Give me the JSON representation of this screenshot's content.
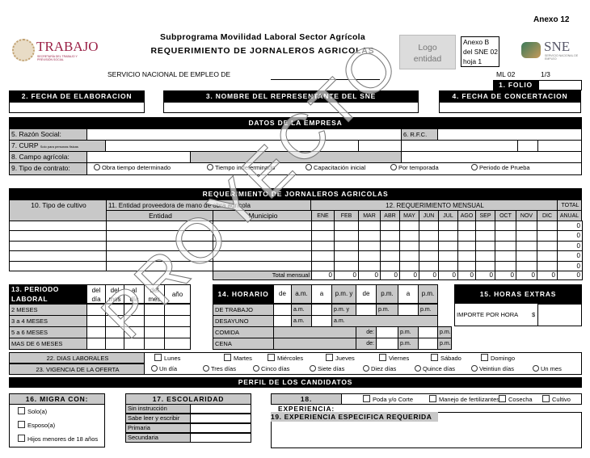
{
  "header": {
    "annex": "Anexo 12",
    "subtitle": "Subprograma Movilidad Laboral Sector Agrícola",
    "title": "REQUERIMIENTO DE JORNALEROS AGRICOLAS",
    "trabajo_logo": "TRABAJO",
    "trabajo_sub": "SECRETARÍA DEL TRABAJO Y PREVISIÓN SOCIAL",
    "logo_entidad": "Logo entidad",
    "anexo_b": "Anexo B del SNE 02 hoja 1",
    "sne_logo": "SNE",
    "sne_sub": "SERVICIO NACIONAL DE EMPLEO",
    "servicio": "SERVICIO NACIONAL DE EMPLEO DE",
    "code": "ML 02",
    "page": "1/3",
    "folio": "1. FOLIO"
  },
  "top_fields": [
    "2. FECHA DE ELABORACION",
    "3. NOMBRE DEL REPRESENTANTE DEL SNE",
    "4. FECHA DE CONCERTACION"
  ],
  "empresa": {
    "title": "DATOS DE LA EMPRESA",
    "razon": "5. Razón Social:",
    "rfc": "6. R.F.C.",
    "curp": "7. CURP",
    "curp_note": "Solo para personas físicas",
    "campo": "8. Campo agrícola:",
    "contrato": "9. Tipo de contrato:",
    "contrato_options": [
      "Obra tiempo determinado",
      "Tiempo indeterminado",
      "Capacitación inicial",
      "Por temporada",
      "Periodo de Prueba"
    ]
  },
  "requerimiento": {
    "title": "REQUERIMIENTO DE JORNALEROS AGRICOLAS",
    "cultivo": "10. Tipo de cultivo",
    "proveedora": "11. Entidad proveedora de mano de obra agrícola",
    "entidad": "Entidad",
    "municipio": "Municipio",
    "mensual": "12. REQUERIMIENTO MENSUAL",
    "total": "TOTAL",
    "anual": "ANUAL",
    "months": [
      "ENE",
      "FEB",
      "MAR",
      "ABR",
      "MAY",
      "JUN",
      "JUL",
      "AGO",
      "SEP",
      "OCT",
      "NOV",
      "DIC"
    ],
    "row_totals": [
      "0",
      "0",
      "0",
      "0",
      "0"
    ],
    "total_mensual_label": "Total mensual",
    "total_mensual": [
      "0",
      "0",
      "0",
      "0",
      "0",
      "0",
      "0",
      "0",
      "0",
      "0",
      "0",
      "0",
      "0"
    ]
  },
  "periodo": {
    "title1": "13. PERIODO",
    "title2": "LABORAL",
    "cols": [
      [
        "del",
        "día"
      ],
      [
        "del",
        "mes"
      ],
      [
        "al",
        "día"
      ],
      [
        "del",
        "mes"
      ],
      [
        "año",
        ""
      ]
    ],
    "rows": [
      "2 MESES",
      "3 a 4 MESES",
      "5 a 6 MESES",
      "MAS DE 6 MESES"
    ]
  },
  "horario": {
    "title": "14. HORARIO",
    "head": [
      "de",
      "a.m.",
      "a",
      "p.m. y",
      "de",
      "p.m.",
      "a",
      "p.m."
    ],
    "trabajo": "DE TRABAJO",
    "desayuno": "DESAYUNO",
    "comida": "COMIDA",
    "cena": "CENA",
    "am": "a.m.",
    "pmy": "p.m. y",
    "pm": "p.m.",
    "de": "de:"
  },
  "horas_extras": {
    "title": "15. HORAS EXTRAS",
    "importe": "IMPORTE POR HORA",
    "currency": "$"
  },
  "dias": {
    "label": "22. DIAS LABORALES",
    "options": [
      "Lunes",
      "Martes",
      "Miércoles",
      "Jueves",
      "Viernes",
      "Sábado",
      "Domingo"
    ]
  },
  "vigencia": {
    "label": "23. VIGENCIA DE LA OFERTA",
    "options": [
      "Un día",
      "Tres días",
      "Cinco días",
      "Siete días",
      "Diez días",
      "Quince días",
      "Veintiun días",
      "Un mes"
    ]
  },
  "perfil": {
    "title": "PERFIL DE LOS CANDIDATOS",
    "migra": "16. MIGRA CON:",
    "migra_options": [
      "Solo(a)",
      "Esposo(a)",
      "Hijos menores de 18 años"
    ],
    "escolaridad": "17. ESCOLARIDAD",
    "escolaridad_rows": [
      "Sin instrucción",
      "Sabe leer y escribir",
      "Primaria",
      "Secundaria"
    ],
    "experiencia": "18. EXPERIENCIA:",
    "experiencia_options": [
      "Poda y/o Corte",
      "Manejo de fertilizantes",
      "Cosecha",
      "Cultivo"
    ],
    "especifica": "19. EXPERIENCIA ESPECIFICA REQUERIDA"
  },
  "watermark": "PROYECTO"
}
